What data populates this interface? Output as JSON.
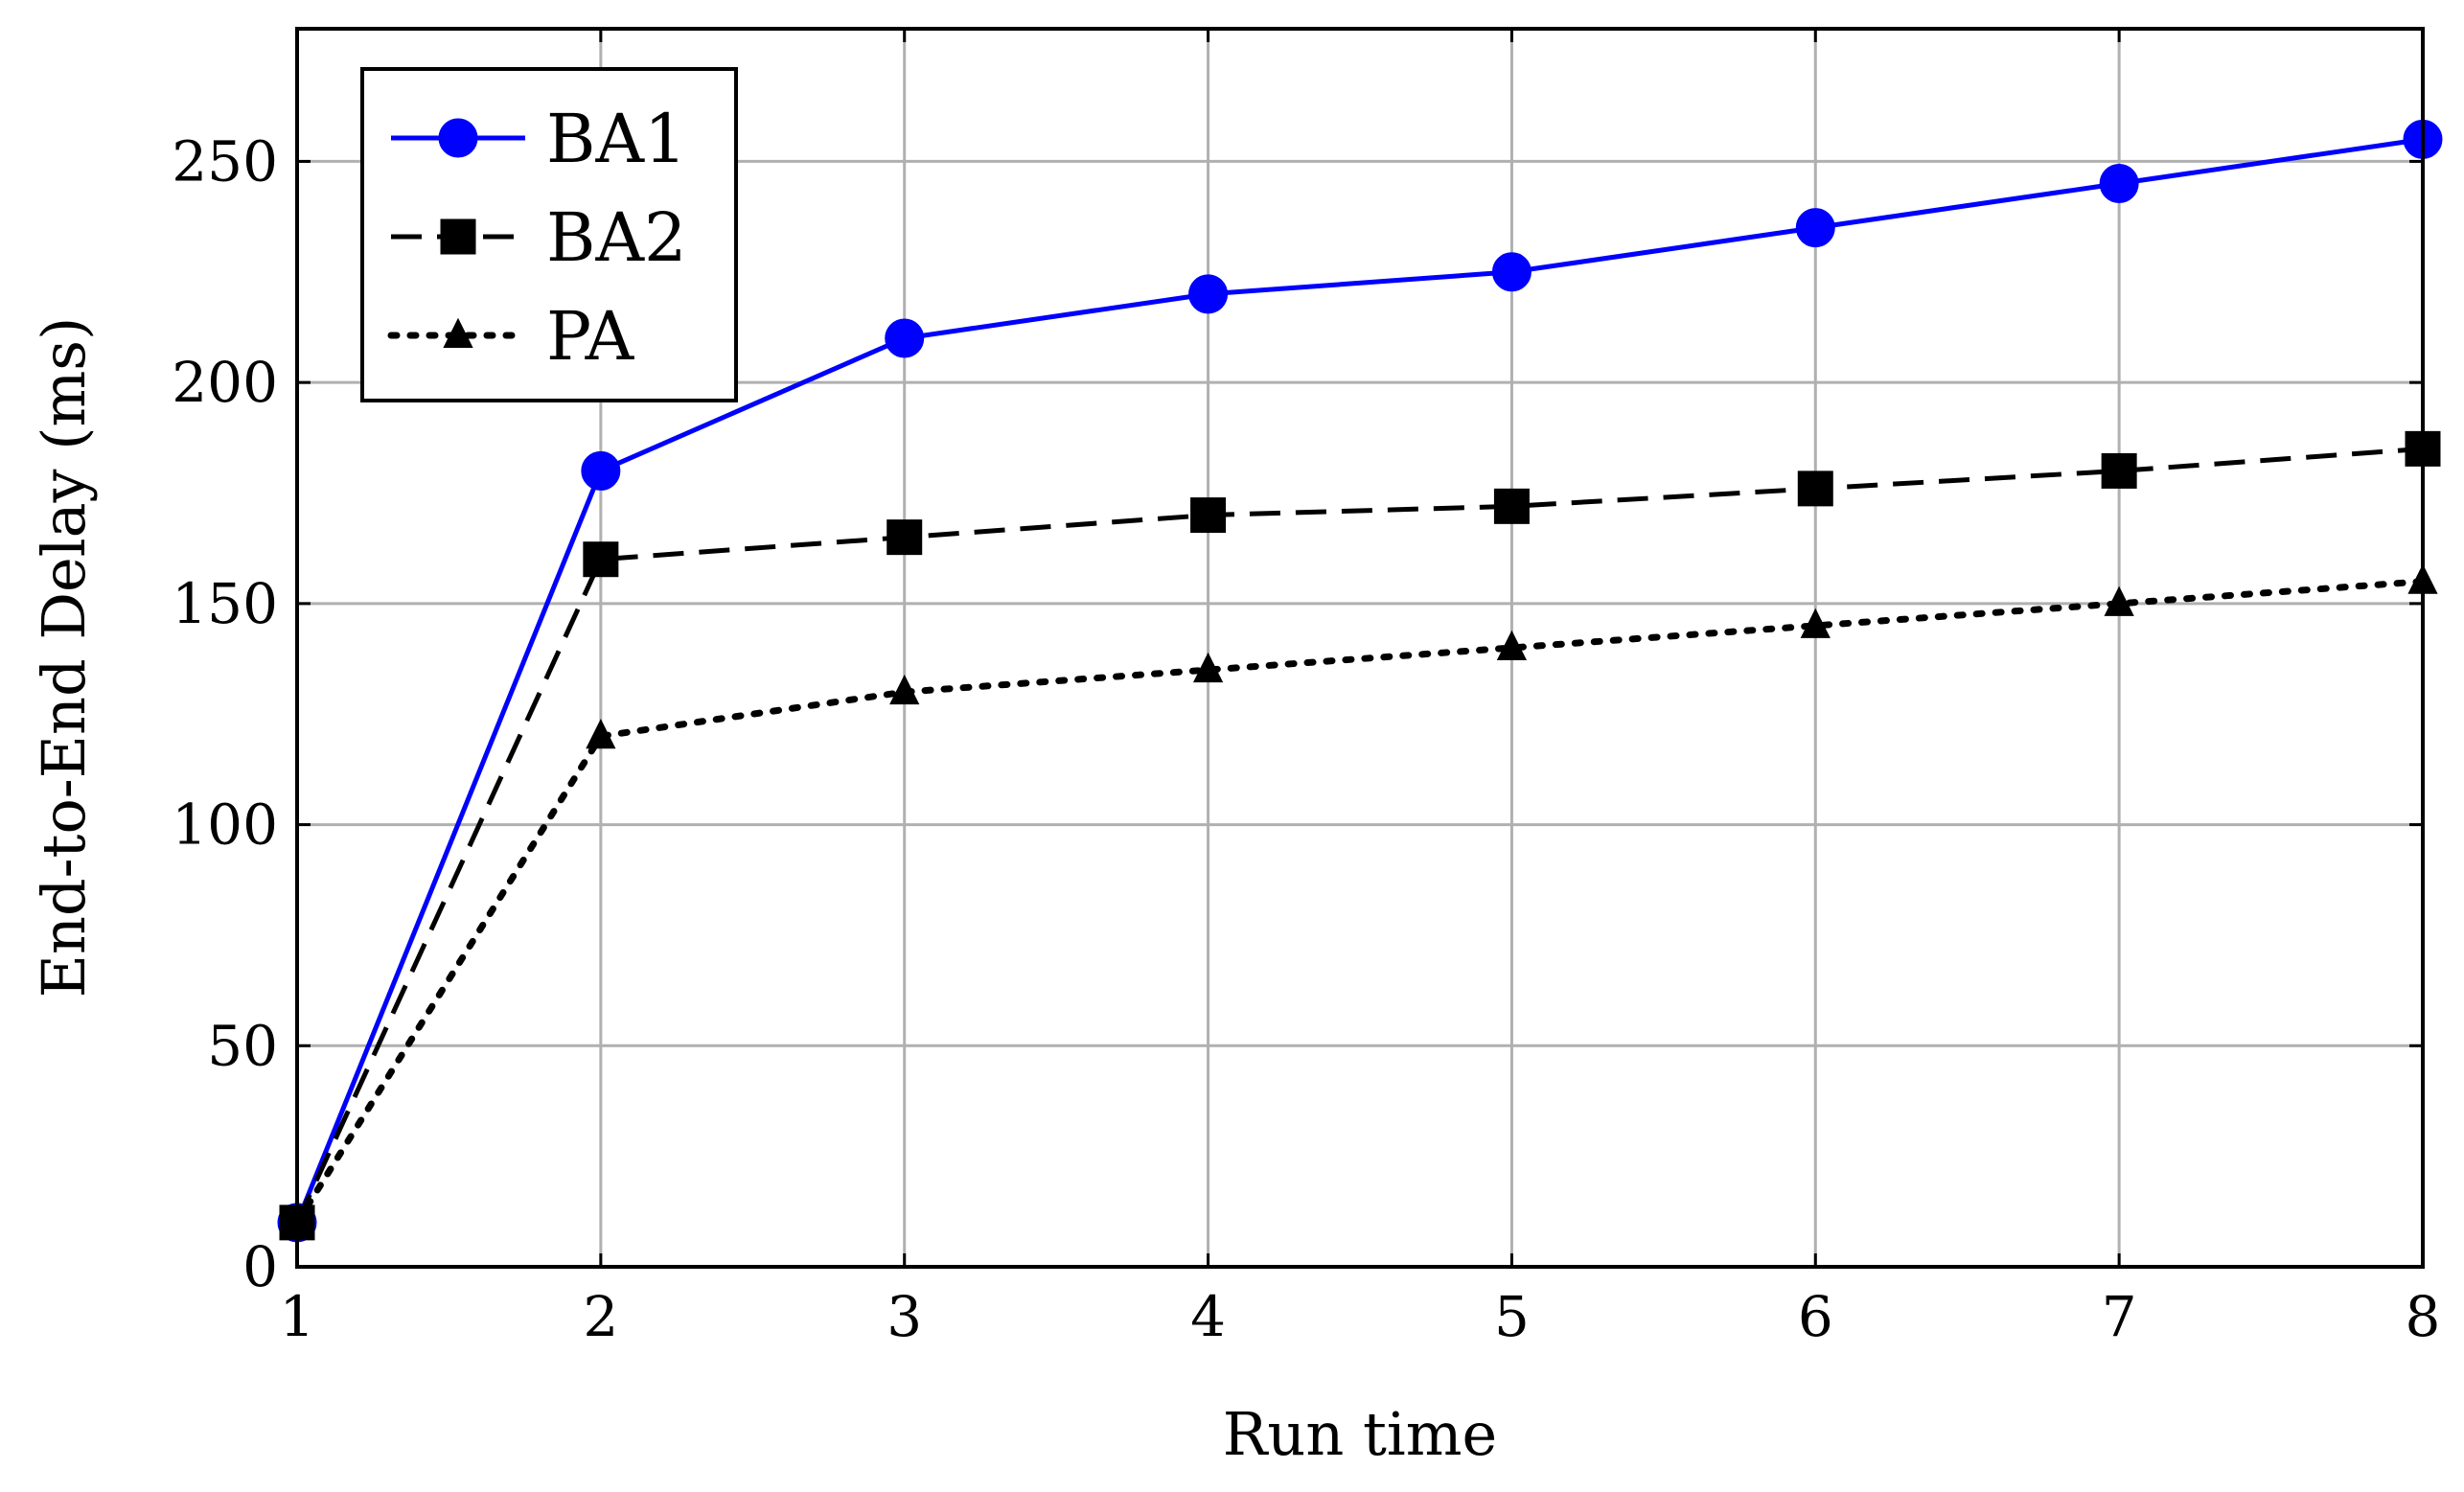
{
  "chart_data": {
    "type": "line",
    "title": "",
    "xlabel": "Run time",
    "ylabel": "End-to-End Delay (ms)",
    "x": [
      1,
      2,
      3,
      4,
      5,
      6,
      7,
      8
    ],
    "xlim": [
      1,
      8
    ],
    "ylim": [
      0,
      280
    ],
    "xticks": [
      1,
      2,
      3,
      4,
      5,
      6,
      7,
      8
    ],
    "yticks": [
      0,
      50,
      100,
      150,
      200,
      250
    ],
    "grid": true,
    "legend_position": "top-left",
    "series": [
      {
        "name": "BA1",
        "values": [
          10,
          180,
          210,
          220,
          225,
          235,
          245,
          255
        ],
        "color": "#0000ff",
        "line_style": "solid",
        "marker": "circle"
      },
      {
        "name": "BA2",
        "values": [
          10,
          160,
          165,
          170,
          172,
          176,
          180,
          185
        ],
        "color": "#000000",
        "line_style": "dashed",
        "marker": "square"
      },
      {
        "name": "PA",
        "values": [
          10,
          120,
          130,
          135,
          140,
          145,
          150,
          155
        ],
        "color": "#000000",
        "line_style": "dotted",
        "marker": "triangle"
      }
    ]
  }
}
